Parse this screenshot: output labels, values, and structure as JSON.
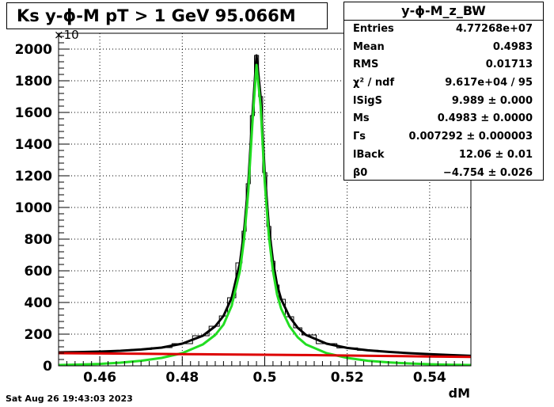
{
  "title": "Ks y-ϕ-M pT > 1 GeV   95.066M",
  "stats": {
    "title": "y-ϕ-M_z_BW",
    "rows": [
      {
        "name": "Entries",
        "value": "4.77268e+07"
      },
      {
        "name": "Mean",
        "value": "0.4983"
      },
      {
        "name": "RMS",
        "value": "0.01713"
      },
      {
        "name": "χ² / ndf",
        "value": "9.617e+04 / 95"
      },
      {
        "name": "lSigS",
        "value": "9.989 ± 0.000"
      },
      {
        "name": "Ms",
        "value": "0.4983 ± 0.0000"
      },
      {
        "name": "Γs",
        "value": "0.007292 ± 0.000003"
      },
      {
        "name": "lBack",
        "value": "12.06 ± 0.01"
      },
      {
        "name": "β0",
        "value": "−4.754 ± 0.026"
      }
    ]
  },
  "date": "Sat Aug 26 19:43:03 2023",
  "chart_data": {
    "type": "line",
    "xlabel": "dM",
    "ylabel": "",
    "y_multiplier_label": "×10",
    "xlim": [
      0.45,
      0.55
    ],
    "ylim": [
      0,
      2100
    ],
    "x_ticks": [
      0.46,
      0.48,
      0.5,
      0.52,
      0.54
    ],
    "x_tick_labels": [
      "0.46",
      "0.48",
      "0.5",
      "0.52",
      "0.54"
    ],
    "y_ticks": [
      0,
      200,
      400,
      600,
      800,
      1000,
      1200,
      1400,
      1600,
      1800,
      2000
    ],
    "y_tick_labels": [
      "0",
      "200",
      "400",
      "600",
      "800",
      "1000",
      "1200",
      "1400",
      "1600",
      "1800",
      "2000"
    ],
    "grid": true,
    "series": [
      {
        "role": "data-histogram",
        "color": "#000000",
        "x": [
          0.45,
          0.455,
          0.46,
          0.465,
          0.47,
          0.475,
          0.48,
          0.485,
          0.488,
          0.49,
          0.492,
          0.494,
          0.495,
          0.496,
          0.497,
          0.498,
          0.499,
          0.5,
          0.501,
          0.502,
          0.503,
          0.504,
          0.506,
          0.508,
          0.51,
          0.515,
          0.52,
          0.525,
          0.53,
          0.535,
          0.54,
          0.545,
          0.55
        ],
        "values": [
          85,
          87,
          90,
          95,
          103,
          115,
          140,
          190,
          250,
          315,
          430,
          650,
          850,
          1150,
          1580,
          1960,
          1700,
          1220,
          880,
          660,
          510,
          420,
          310,
          240,
          195,
          140,
          113,
          98,
          88,
          80,
          74,
          68,
          63
        ]
      },
      {
        "role": "total-fit",
        "color": "#000000",
        "x": [
          0.45,
          0.455,
          0.46,
          0.465,
          0.47,
          0.475,
          0.48,
          0.485,
          0.488,
          0.49,
          0.492,
          0.494,
          0.495,
          0.496,
          0.497,
          0.498,
          0.499,
          0.5,
          0.501,
          0.502,
          0.503,
          0.504,
          0.506,
          0.508,
          0.51,
          0.515,
          0.52,
          0.525,
          0.53,
          0.535,
          0.54,
          0.545,
          0.55
        ],
        "values": [
          85,
          87,
          90,
          95,
          103,
          115,
          140,
          190,
          250,
          315,
          430,
          650,
          850,
          1150,
          1580,
          1960,
          1700,
          1220,
          880,
          660,
          510,
          420,
          310,
          240,
          195,
          140,
          113,
          98,
          88,
          80,
          74,
          68,
          63
        ]
      },
      {
        "role": "signal-fit",
        "color": "#22dd22",
        "x": [
          0.45,
          0.455,
          0.46,
          0.465,
          0.47,
          0.475,
          0.48,
          0.485,
          0.488,
          0.49,
          0.492,
          0.494,
          0.495,
          0.496,
          0.497,
          0.498,
          0.499,
          0.5,
          0.501,
          0.502,
          0.503,
          0.504,
          0.506,
          0.508,
          0.51,
          0.515,
          0.52,
          0.525,
          0.53,
          0.535,
          0.54,
          0.545,
          0.55
        ],
        "values": [
          5,
          8,
          12,
          20,
          32,
          50,
          80,
          135,
          195,
          260,
          380,
          600,
          800,
          1100,
          1530,
          1900,
          1640,
          1160,
          820,
          600,
          450,
          360,
          250,
          180,
          135,
          80,
          50,
          32,
          22,
          15,
          10,
          7,
          5
        ]
      },
      {
        "role": "background-fit",
        "color": "#dd0000",
        "x": [
          0.45,
          0.46,
          0.47,
          0.48,
          0.49,
          0.5,
          0.51,
          0.52,
          0.53,
          0.54,
          0.55
        ],
        "values": [
          80,
          78,
          76,
          74,
          72,
          70,
          68,
          65,
          62,
          59,
          56
        ]
      }
    ]
  }
}
